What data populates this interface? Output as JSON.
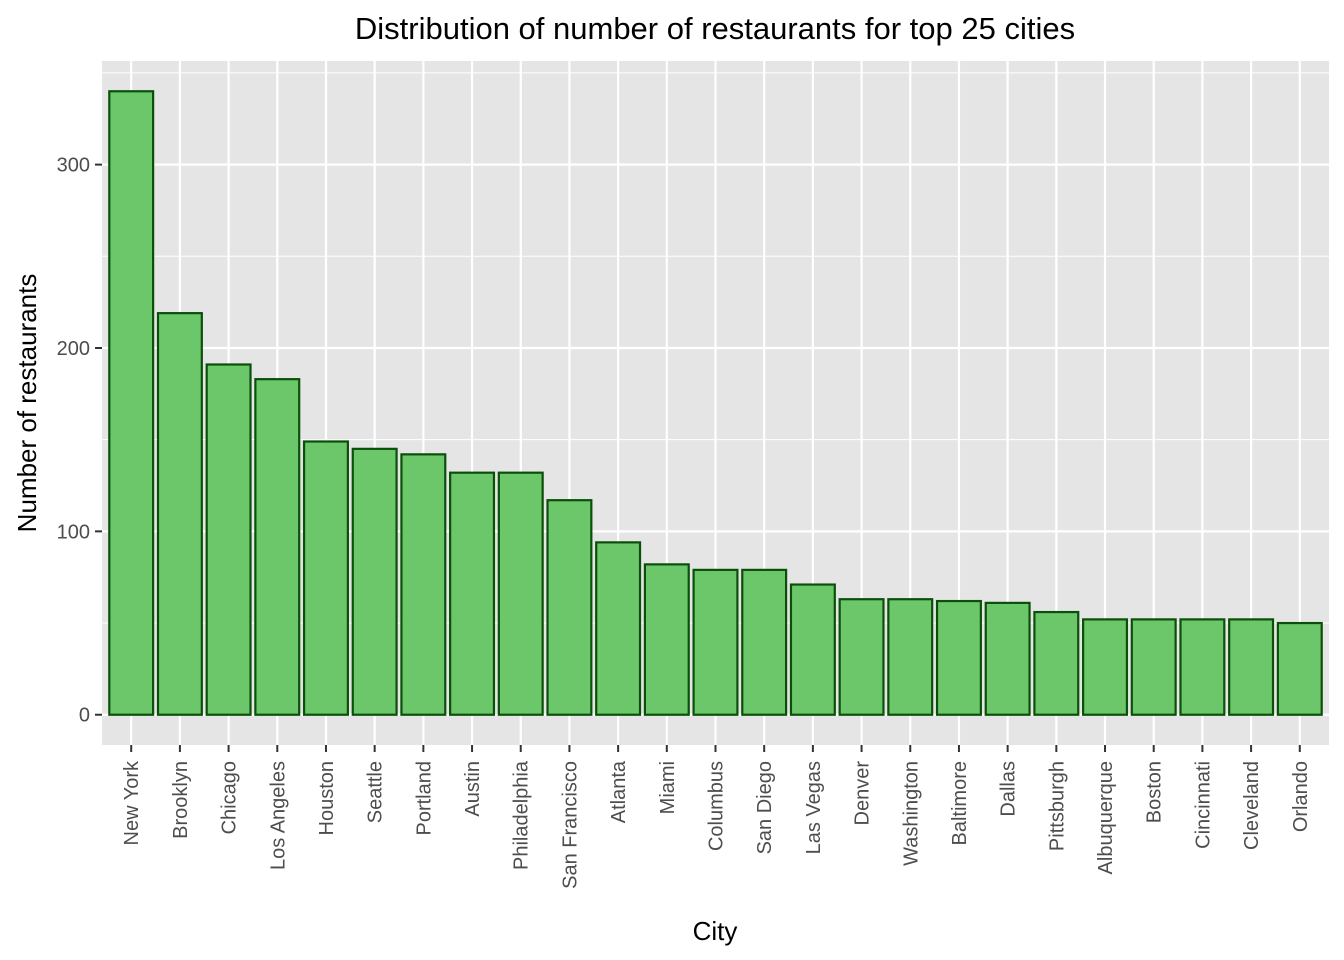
{
  "chart_data": {
    "type": "bar",
    "title": "Distribution of number of restaurants for top 25 cities",
    "xlabel": "City",
    "ylabel": "Number of restaurants",
    "categories": [
      "New York",
      "Brooklyn",
      "Chicago",
      "Los Angeles",
      "Houston",
      "Seattle",
      "Portland",
      "Austin",
      "Philadelphia",
      "San Francisco",
      "Atlanta",
      "Miami",
      "Columbus",
      "San Diego",
      "Las Vegas",
      "Denver",
      "Washington",
      "Baltimore",
      "Dallas",
      "Pittsburgh",
      "Albuquerque",
      "Boston",
      "Cincinnati",
      "Cleveland",
      "Orlando"
    ],
    "values": [
      340,
      219,
      191,
      183,
      149,
      145,
      142,
      132,
      132,
      117,
      94,
      82,
      79,
      79,
      71,
      63,
      63,
      62,
      61,
      56,
      52,
      52,
      52,
      52,
      50
    ],
    "ylim": [
      -16.5,
      356.5
    ],
    "yticks": [
      0,
      100,
      200,
      300
    ],
    "ytick_labels": [
      "0",
      "100",
      "200",
      "300"
    ],
    "grid": true,
    "colors": {
      "bar_fill": "#6cc66a",
      "bar_stroke": "#0a500a",
      "panel_background": "#e5e5e5",
      "grid_line": "#ffffff"
    }
  }
}
